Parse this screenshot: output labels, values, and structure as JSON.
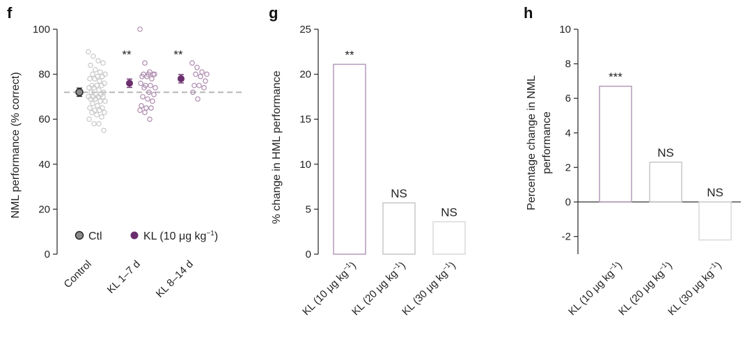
{
  "colors": {
    "ctl": "#8a8a8a",
    "ctl_light": "#c9c9c9",
    "kl": "#6b2f6e",
    "kl_light": "#ad8aae",
    "bar_g1": "#b49ab8",
    "bar_g2": "#c6c6c6",
    "bar_g3": "#d9d9d9",
    "dashed": "#b5b5b5"
  },
  "chart_data": [
    {
      "panel": "f",
      "type": "scatter",
      "ylabel": "NML performance (% correct)",
      "ylim": [
        0,
        100
      ],
      "yticks": [
        "0",
        "20",
        "40",
        "60",
        "80",
        "100"
      ],
      "categories": [
        "Control",
        "KL 1–7 d",
        "KL 8–14 d"
      ],
      "reference_line": 72,
      "legend": {
        "ctl": "Ctl",
        "kl": "KL (10 μg kg⁻¹)",
        "placement": "bottom-left"
      },
      "significance": [
        "",
        "**",
        "**"
      ],
      "series": [
        {
          "name": "Ctl",
          "means": [
            72,
            null,
            null
          ]
        },
        {
          "name": "KL (10 μg kg⁻¹)",
          "means": [
            null,
            76,
            78
          ]
        }
      ],
      "points": [
        [
          90,
          88,
          86,
          85,
          84,
          82,
          81,
          80,
          80,
          79,
          79,
          78,
          78,
          77,
          76,
          75,
          75,
          75,
          74,
          74,
          73,
          72,
          72,
          71,
          71,
          70,
          70,
          70,
          70,
          69,
          69,
          68,
          68,
          67,
          66,
          65,
          65,
          64,
          64,
          63,
          63,
          62,
          61,
          60,
          58,
          58,
          55
        ],
        [
          100,
          85,
          81,
          80,
          80,
          80,
          80,
          79,
          79,
          78,
          76,
          75,
          75,
          74,
          74,
          72,
          71,
          70,
          69,
          68,
          66,
          65,
          65,
          64,
          63,
          60
        ],
        [
          85,
          83,
          81,
          80,
          80,
          79,
          77,
          75,
          75,
          74,
          72,
          69
        ]
      ]
    },
    {
      "panel": "g",
      "type": "bar",
      "ylabel": "% change in HML performance",
      "ylim": [
        0,
        25
      ],
      "yticks": [
        "0",
        "5",
        "10",
        "15",
        "20",
        "25"
      ],
      "categories": [
        "KL (10 μg kg⁻¹)",
        "KL (20 μg kg⁻¹)",
        "KL (30 μg kg⁻¹)"
      ],
      "values": [
        21.1,
        5.7,
        3.6
      ],
      "significance": [
        "**",
        "NS",
        "NS"
      ]
    },
    {
      "panel": "h",
      "type": "bar",
      "ylabel": [
        "Percentage change in NML",
        "performance"
      ],
      "ylim": [
        -3,
        10
      ],
      "yticks": [
        "-2",
        "0",
        "2",
        "4",
        "6",
        "8",
        "10"
      ],
      "categories": [
        "KL (10 μg kg⁻¹)",
        "KL (20 μg kg⁻¹)",
        "KL (30 μg kg⁻¹)"
      ],
      "values": [
        6.7,
        2.3,
        -2.2
      ],
      "significance": [
        "***",
        "NS",
        "NS"
      ]
    }
  ]
}
